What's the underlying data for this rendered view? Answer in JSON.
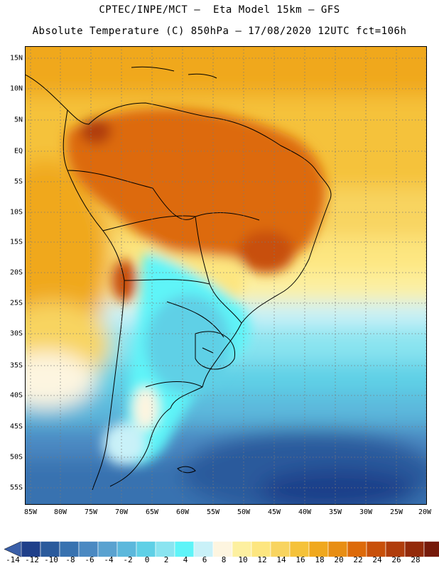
{
  "title_line1": "CPTEC/INPE/MCT –  Eta Model 15km – GFS",
  "title_line2": "Absolute Temperature (C) 850hPa – 17/08/2020 12UTC fct=106h",
  "lat_labels": [
    "15N",
    "10N",
    "5N",
    "EQ",
    "5S",
    "10S",
    "15S",
    "20S",
    "25S",
    "30S",
    "35S",
    "40S",
    "45S",
    "50S",
    "55S"
  ],
  "lon_labels": [
    "85W",
    "80W",
    "75W",
    "70W",
    "65W",
    "60W",
    "55W",
    "50W",
    "45W",
    "40W",
    "35W",
    "30W",
    "25W",
    "20W"
  ],
  "colorbar_labels": [
    "-14",
    "-12",
    "-10",
    "-8",
    "-6",
    "-4",
    "-2",
    "0",
    "2",
    "4",
    "6",
    "8",
    "10",
    "12",
    "14",
    "16",
    "18",
    "20",
    "22",
    "24",
    "26",
    "28"
  ],
  "colorbar_colors": [
    "#1f3f8a",
    "#2a5a9c",
    "#3872b0",
    "#4b89c2",
    "#5aa2d0",
    "#5cb8dc",
    "#5fd0e6",
    "#8ae4f0",
    "#5ef4f8",
    "#c9f1f8",
    "#fdf5e0",
    "#fdf0a0",
    "#fde680",
    "#f8d460",
    "#f5c23a",
    "#f0a81e",
    "#e88e14",
    "#dd6a0a",
    "#c8500a",
    "#b03d0c",
    "#932a0a",
    "#761a0a"
  ],
  "legend": {
    "under": "#3a5fa8",
    "over": "#70101a"
  }
}
